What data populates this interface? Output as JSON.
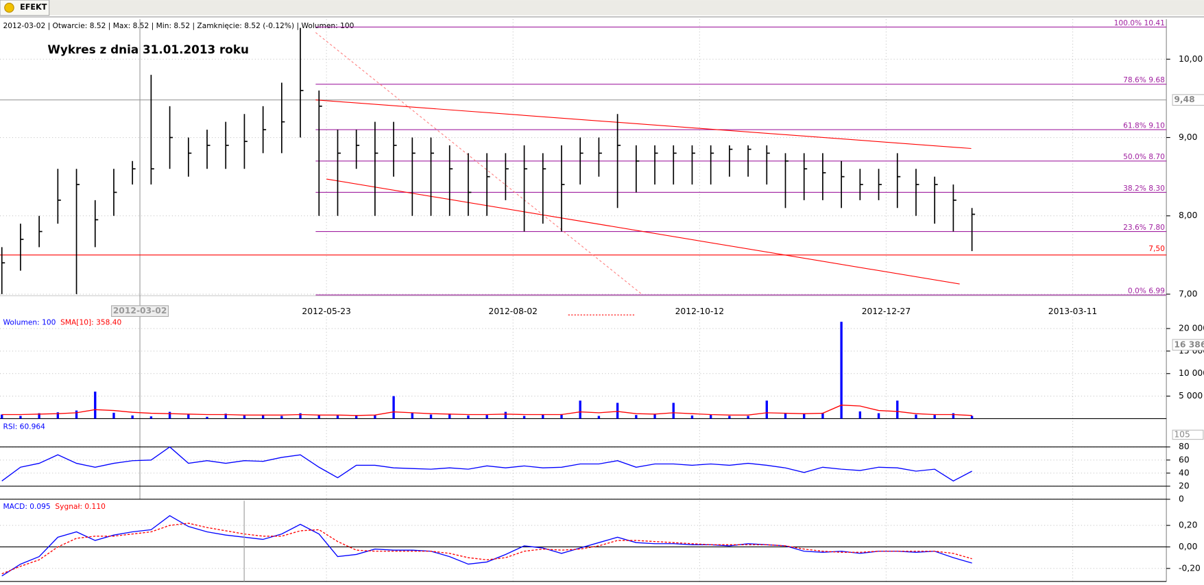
{
  "tab": "EFEKT",
  "chart_data": [
    {
      "type": "candlestick",
      "subtitle": "2012-03-02 | Otwarcie: 8.52 | Max: 8.52 | Min: 8.52 | Zamknięcie: 8.52 (-0.12%)  | Wolumen: 100",
      "title": "Wykres z dnia 31.01.2013 roku",
      "x": [
        0,
        5,
        10,
        15,
        20,
        25,
        30,
        35,
        40,
        45,
        50,
        55,
        60,
        65,
        70,
        75,
        80,
        85,
        90,
        95,
        100,
        105,
        110,
        115,
        120,
        125,
        130,
        135,
        140,
        145,
        150,
        155,
        160,
        165,
        170,
        175,
        180,
        185,
        190,
        195,
        200,
        205,
        210,
        215,
        220,
        225,
        230,
        235,
        240,
        245,
        250,
        255,
        260
      ],
      "high": [
        7.6,
        7.9,
        8.0,
        8.6,
        8.6,
        8.2,
        8.6,
        8.7,
        9.8,
        9.4,
        9.0,
        9.1,
        9.2,
        9.3,
        9.4,
        9.7,
        10.4,
        9.6,
        9.1,
        9.1,
        9.2,
        9.2,
        9.0,
        9.0,
        8.9,
        8.8,
        8.8,
        8.8,
        8.9,
        8.8,
        8.9,
        9.0,
        9.0,
        9.3,
        8.9,
        8.9,
        8.9,
        8.9,
        8.9,
        8.9,
        8.9,
        8.9,
        8.8,
        8.8,
        8.8,
        8.7,
        8.6,
        8.6,
        8.8,
        8.6,
        8.5,
        8.4,
        8.1
      ],
      "low": [
        7.0,
        7.3,
        7.6,
        7.9,
        7.0,
        7.6,
        8.0,
        8.4,
        8.4,
        8.6,
        8.5,
        8.6,
        8.6,
        8.6,
        8.8,
        8.8,
        9.0,
        8.0,
        8.0,
        8.6,
        8.0,
        8.5,
        8.0,
        8.0,
        8.0,
        8.0,
        8.0,
        8.2,
        7.8,
        7.9,
        7.8,
        8.4,
        8.5,
        8.1,
        8.3,
        8.4,
        8.4,
        8.4,
        8.4,
        8.5,
        8.5,
        8.4,
        8.1,
        8.2,
        8.2,
        8.1,
        8.2,
        8.2,
        8.1,
        8.0,
        7.9,
        7.8,
        7.55
      ],
      "close": [
        7.4,
        7.7,
        7.8,
        8.2,
        8.4,
        7.95,
        8.3,
        8.6,
        8.6,
        9.0,
        8.8,
        8.9,
        8.9,
        8.95,
        9.1,
        9.2,
        9.6,
        9.4,
        8.8,
        8.9,
        8.8,
        8.9,
        8.8,
        8.8,
        8.6,
        8.3,
        8.5,
        8.6,
        8.6,
        8.6,
        8.4,
        8.8,
        8.8,
        8.9,
        8.7,
        8.8,
        8.8,
        8.8,
        8.8,
        8.85,
        8.85,
        8.8,
        8.7,
        8.6,
        8.55,
        8.5,
        8.4,
        8.4,
        8.5,
        8.4,
        8.4,
        8.2,
        8.02
      ],
      "color": "#000000",
      "xlim": [
        -0.5,
        312.1
      ],
      "xticks": [
        {
          "value": 87,
          "label": "2012-05-23"
        },
        {
          "value": 137,
          "label": "2012-08-02"
        },
        {
          "value": 187,
          "label": "2012-10-12"
        },
        {
          "value": 237,
          "label": "2012-12-27"
        },
        {
          "value": 287,
          "label": "2013-03-11"
        }
      ],
      "cursor_x": {
        "value": 37,
        "label": "2012-03-02"
      },
      "cursor_y": {
        "value": 9.48,
        "label": "9,48"
      },
      "ylim": [
        6.98,
        10.51
      ],
      "yticks": [
        {
          "value": 7,
          "label": "7,00"
        },
        {
          "value": 8,
          "label": "8,00"
        },
        {
          "value": 9,
          "label": "9,00"
        },
        {
          "value": 10,
          "label": "10,00"
        }
      ],
      "fib_levels": [
        {
          "value": 10.41,
          "label": "100.0% 10.41"
        },
        {
          "value": 9.68,
          "label": "78.6% 9.68"
        },
        {
          "value": 9.1,
          "label": "61.8% 9.10"
        },
        {
          "value": 8.7,
          "label": "50.0% 8.70"
        },
        {
          "value": 8.3,
          "label": "38.2% 8.30"
        },
        {
          "value": 7.8,
          "label": "23.6% 7.80"
        },
        {
          "value": 6.99,
          "label": "0.0% 6.99"
        }
      ],
      "fib_color": "#a020a0",
      "support": {
        "value": 7.5,
        "label": "7,50"
      },
      "support_color": "#ff0000",
      "trendlines": [
        {
          "x": [
            84.1,
            259.8
          ],
          "y": [
            9.48,
            8.86
          ],
          "color": "#ff0000"
        },
        {
          "x": [
            87,
            256.7
          ],
          "y": [
            8.47,
            7.13
          ],
          "color": "#ff0000"
        },
        {
          "x": [
            84.1,
            171.5
          ],
          "y": [
            10.34,
            7.0
          ],
          "color": "#ff8080",
          "dashed": true
        }
      ],
      "grid": true
    },
    {
      "type": "bar",
      "series": [
        {
          "name": "Wolumen: 100",
          "type": "bar",
          "color": "#0000ff",
          "values": [
            900,
            600,
            1200,
            1400,
            1800,
            6000,
            1300,
            700,
            500,
            1500,
            900,
            400,
            1100,
            700,
            900,
            600,
            1200,
            900,
            700,
            600,
            800,
            5000,
            1300,
            900,
            1100,
            700,
            800,
            1500,
            600,
            900,
            1000,
            4000,
            600,
            3500,
            800,
            900,
            3500,
            700,
            800,
            600,
            600,
            4000,
            1200,
            1100,
            1300,
            21500,
            1600,
            1200,
            4000,
            900,
            800,
            1200,
            600
          ]
        },
        {
          "name": "SMA[10]: 358.40",
          "type": "line",
          "color": "#ff0000",
          "values": [
            900,
            900,
            1000,
            1100,
            1300,
            2000,
            1800,
            1400,
            1200,
            1100,
            1000,
            900,
            900,
            800,
            800,
            800,
            900,
            800,
            800,
            700,
            800,
            1500,
            1300,
            1100,
            1000,
            900,
            900,
            1000,
            900,
            900,
            900,
            1500,
            1300,
            1600,
            1100,
            1000,
            1300,
            1100,
            900,
            800,
            800,
            1300,
            1200,
            1100,
            1200,
            3000,
            2800,
            1800,
            1600,
            1100,
            900,
            900,
            700
          ]
        }
      ],
      "cursor_y": {
        "value": 16386,
        "label": "16 386"
      },
      "ylim": [
        0,
        22680
      ],
      "yticks": [
        {
          "value": 5000,
          "label": "5 000"
        },
        {
          "value": 10000,
          "label": "10 000"
        },
        {
          "value": 15000,
          "label": "15 000"
        },
        {
          "value": 20000,
          "label": "20 000"
        }
      ],
      "grid": true
    },
    {
      "type": "line",
      "series": [
        {
          "name": "RSI: 60.964",
          "type": "line",
          "color": "#0000ff",
          "values": [
            28,
            49,
            55,
            68,
            55,
            49,
            55,
            59,
            60,
            80,
            55,
            59,
            55,
            59,
            58,
            64,
            68,
            49,
            33,
            52,
            52,
            48,
            47,
            46,
            48,
            46,
            51,
            48,
            51,
            48,
            49,
            54,
            54,
            59,
            49,
            54,
            54,
            52,
            54,
            52,
            55,
            52,
            48,
            41,
            49,
            46,
            44,
            49,
            48,
            43,
            46,
            28,
            43
          ]
        }
      ],
      "bands": [
        20,
        80
      ],
      "note": "105",
      "ylim": [
        0,
        119.8
      ],
      "yticks": [
        0,
        20,
        40,
        60,
        80
      ],
      "grid": true
    },
    {
      "type": "line",
      "series": [
        {
          "name": "MACD: 0.095",
          "type": "line",
          "color": "#0000ff",
          "values": [
            -0.27,
            -0.16,
            -0.09,
            0.09,
            0.14,
            0.06,
            0.11,
            0.14,
            0.16,
            0.29,
            0.19,
            0.14,
            0.11,
            0.09,
            0.07,
            0.12,
            0.21,
            0.12,
            -0.09,
            -0.07,
            -0.02,
            -0.03,
            -0.03,
            -0.04,
            -0.09,
            -0.16,
            -0.14,
            -0.07,
            0.01,
            -0.01,
            -0.06,
            -0.01,
            0.04,
            0.09,
            0.04,
            0.03,
            0.03,
            0.02,
            0.02,
            0.01,
            0.03,
            0.02,
            0.01,
            -0.04,
            -0.05,
            -0.04,
            -0.06,
            -0.04,
            -0.04,
            -0.05,
            -0.04,
            -0.1,
            -0.15
          ]
        },
        {
          "name": "Sygnał: 0.110",
          "type": "line",
          "color": "#ff0000",
          "dashed": true,
          "values": [
            -0.25,
            -0.18,
            -0.12,
            0.0,
            0.08,
            0.1,
            0.1,
            0.12,
            0.14,
            0.2,
            0.22,
            0.18,
            0.15,
            0.12,
            0.1,
            0.1,
            0.15,
            0.16,
            0.05,
            -0.03,
            -0.04,
            -0.04,
            -0.04,
            -0.04,
            -0.06,
            -0.1,
            -0.12,
            -0.1,
            -0.04,
            -0.02,
            -0.03,
            -0.02,
            0.01,
            0.06,
            0.06,
            0.05,
            0.04,
            0.03,
            0.02,
            0.02,
            0.02,
            0.02,
            0.01,
            -0.02,
            -0.04,
            -0.05,
            -0.05,
            -0.04,
            -0.04,
            -0.04,
            -0.04,
            -0.06,
            -0.11
          ]
        }
      ],
      "ylim": [
        -0.321,
        0.4286
      ],
      "yticks": [
        {
          "value": -0.2,
          "label": "-0,20"
        },
        {
          "value": 0,
          "label": "0,00"
        },
        {
          "value": 0.2,
          "label": "0,20"
        }
      ],
      "grid": true
    }
  ]
}
